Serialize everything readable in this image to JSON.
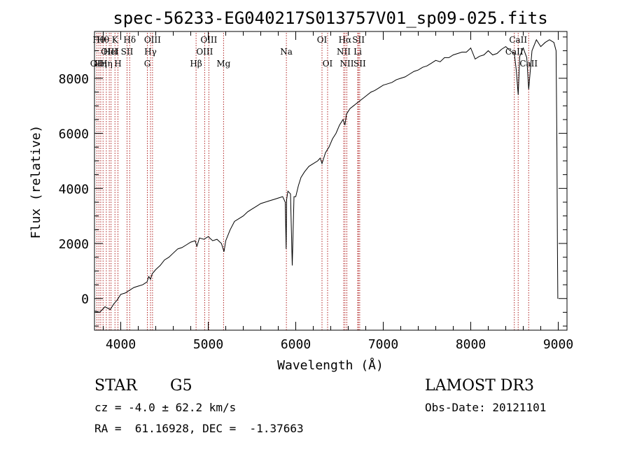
{
  "chart_data": {
    "type": "line",
    "title": "spec-56233-EG040217S013757V01_sp09-025.fits",
    "xlabel": "Wavelength (Å)",
    "ylabel": "Flux (relative)",
    "xlim": [
      3700,
      9100
    ],
    "ylim": [
      -1150,
      9700
    ],
    "xticks": [
      4000,
      5000,
      6000,
      7000,
      8000,
      9000
    ],
    "yticks": [
      0,
      2000,
      4000,
      6000,
      8000
    ],
    "grid": false,
    "legend": "none",
    "line_color": "#000000",
    "marker_color": "#b02020",
    "series": [
      {
        "x": [
          3700,
          3760,
          3820,
          3880,
          3920,
          3960,
          4000,
          4050,
          4100,
          4150,
          4200,
          4250,
          4300,
          4320,
          4340,
          4360,
          4400,
          4450,
          4500,
          4550,
          4600,
          4650,
          4700,
          4750,
          4800,
          4850,
          4870,
          4900,
          4950,
          5000,
          5050,
          5100,
          5150,
          5180,
          5200,
          5250,
          5300,
          5350,
          5400,
          5450,
          5500,
          5550,
          5600,
          5650,
          5700,
          5750,
          5800,
          5850,
          5880,
          5890,
          5896,
          5910,
          5940,
          5960,
          5980,
          6000,
          6030,
          6060,
          6100,
          6150,
          6200,
          6250,
          6280,
          6300,
          6340,
          6380,
          6420,
          6460,
          6500,
          6540,
          6562,
          6580,
          6620,
          6660,
          6700,
          6740,
          6780,
          6820,
          6860,
          6900,
          6950,
          7000,
          7050,
          7100,
          7150,
          7200,
          7250,
          7300,
          7350,
          7400,
          7450,
          7500,
          7550,
          7600,
          7650,
          7700,
          7750,
          7800,
          7850,
          7900,
          7950,
          8000,
          8050,
          8100,
          8150,
          8200,
          8250,
          8300,
          8350,
          8400,
          8450,
          8498,
          8520,
          8542,
          8560,
          8600,
          8640,
          8662,
          8700,
          8750,
          8800,
          8850,
          8900,
          8950,
          8975,
          8985,
          8990,
          8995
        ],
        "y": [
          -450,
          -500,
          -300,
          -400,
          -200,
          -50,
          150,
          200,
          300,
          400,
          450,
          500,
          600,
          800,
          700,
          900,
          1050,
          1200,
          1400,
          1500,
          1650,
          1800,
          1850,
          1950,
          2050,
          2100,
          1900,
          2200,
          2150,
          2250,
          2100,
          2150,
          2000,
          1700,
          2100,
          2500,
          2800,
          2900,
          3000,
          3150,
          3250,
          3350,
          3450,
          3500,
          3550,
          3600,
          3650,
          3700,
          3500,
          1800,
          3600,
          3900,
          3800,
          1200,
          3700,
          3700,
          4100,
          4400,
          4600,
          4800,
          4900,
          5000,
          5100,
          4900,
          5300,
          5500,
          5800,
          6000,
          6300,
          6500,
          6300,
          6700,
          6900,
          7000,
          7100,
          7200,
          7300,
          7400,
          7500,
          7550,
          7650,
          7750,
          7800,
          7850,
          7950,
          8000,
          8050,
          8150,
          8250,
          8300,
          8400,
          8450,
          8550,
          8650,
          8600,
          8750,
          8750,
          8850,
          8900,
          8950,
          8950,
          9100,
          8700,
          8800,
          8850,
          9000,
          8850,
          8900,
          9050,
          9150,
          9000,
          8900,
          8300,
          7400,
          8800,
          9100,
          8750,
          7600,
          9000,
          9400,
          9150,
          9300,
          9400,
          9300,
          9000,
          5500,
          2000,
          -10
        ]
      }
    ],
    "lines": [
      {
        "wavelength": 3727,
        "label": "OII",
        "row": 2
      },
      {
        "wavelength": 3750,
        "label": "Hθ",
        "row": 0
      },
      {
        "wavelength": 3771,
        "label": "Hη",
        "row": 2
      },
      {
        "wavelength": 3798,
        "label": "Hθ",
        "row": 0
      },
      {
        "wavelength": 3835,
        "label": "Hη",
        "row": 2
      },
      {
        "wavelength": 3869,
        "label": "OIII",
        "row": 1
      },
      {
        "wavelength": 3889,
        "label": "HeI",
        "row": 1
      },
      {
        "wavelength": 3934,
        "label": "K",
        "row": 0
      },
      {
        "wavelength": 3968,
        "label": "H",
        "row": 2
      },
      {
        "wavelength": 4072,
        "label": "SII",
        "row": 1
      },
      {
        "wavelength": 4102,
        "label": "Hδ",
        "row": 0
      },
      {
        "wavelength": 4304,
        "label": "G",
        "row": 2
      },
      {
        "wavelength": 4340,
        "label": "Hγ",
        "row": 1
      },
      {
        "wavelength": 4363,
        "label": "OIII",
        "row": 0
      },
      {
        "wavelength": 4861,
        "label": "Hβ",
        "row": 2
      },
      {
        "wavelength": 4959,
        "label": "OIII",
        "row": 1
      },
      {
        "wavelength": 5007,
        "label": "OIII",
        "row": 0
      },
      {
        "wavelength": 5175,
        "label": "Mg",
        "row": 2
      },
      {
        "wavelength": 5893,
        "label": "Na",
        "row": 1
      },
      {
        "wavelength": 6300,
        "label": "OI",
        "row": 0
      },
      {
        "wavelength": 6364,
        "label": "OI",
        "row": 2
      },
      {
        "wavelength": 6548,
        "label": "NII",
        "row": 1
      },
      {
        "wavelength": 6563,
        "label": "Hα",
        "row": 0
      },
      {
        "wavelength": 6584,
        "label": "NII",
        "row": 2
      },
      {
        "wavelength": 6708,
        "label": "Li",
        "row": 1
      },
      {
        "wavelength": 6717,
        "label": "SII",
        "row": 0
      },
      {
        "wavelength": 6731,
        "label": "SII",
        "row": 2
      },
      {
        "wavelength": 8498,
        "label": "CaII",
        "row": 1
      },
      {
        "wavelength": 8542,
        "label": "CaII",
        "row": 0
      },
      {
        "wavelength": 8662,
        "label": "CaII",
        "row": 2
      }
    ]
  },
  "info": {
    "class": "STAR",
    "subclass": "G5",
    "survey": "LAMOST DR3",
    "cz": "cz = -4.0 ± 62.2 km/s",
    "obs_date": "Obs-Date: 20121101",
    "radec": "RA =  61.16928, DEC =  -1.37663"
  }
}
